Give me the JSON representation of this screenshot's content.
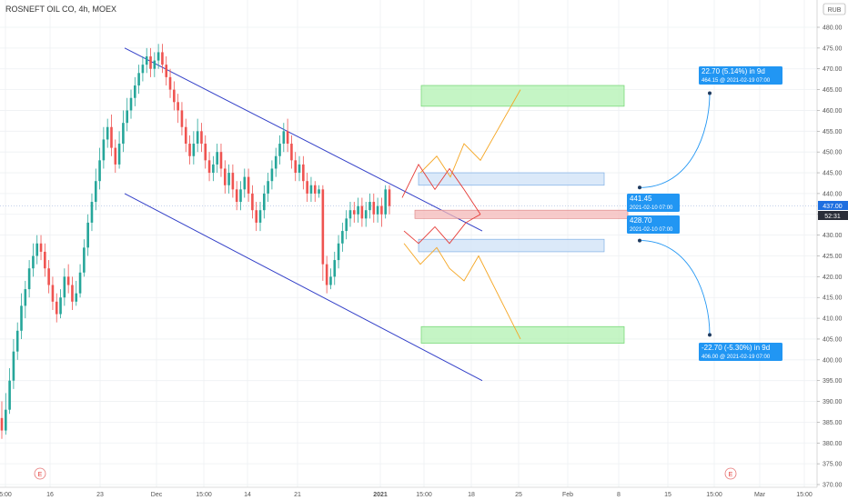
{
  "header": {
    "symbol": "ROSNEFT OIL CO, 4h, MOEX"
  },
  "price_axis": {
    "currency": "RUB",
    "last_price": "437.00",
    "countdown": "52:31"
  },
  "chart_data": {
    "type": "candlestick",
    "title": "ROSNEFT OIL CO, 4h, MOEX",
    "ylim": [
      370,
      480
    ],
    "y_ticks": [
      "370.00",
      "375.00",
      "380.00",
      "385.00",
      "390.00",
      "395.00",
      "400.00",
      "405.00",
      "410.00",
      "415.00",
      "420.00",
      "425.00",
      "430.00",
      "435.00",
      "440.00",
      "445.00",
      "450.00",
      "455.00",
      "460.00",
      "465.00",
      "470.00",
      "475.00",
      "480.00"
    ],
    "x_ticks": [
      "5:00",
      "16",
      "23",
      "Dec",
      "15:00",
      "14",
      "21",
      "2021",
      "15:00",
      "18",
      "25",
      "Feb",
      "8",
      "15",
      "15:00",
      "Mar",
      "15:00"
    ],
    "grid": true,
    "last_price": 437.0,
    "trend_channel": {
      "upper": [
        {
          "date": "2020-11-24",
          "price": 475
        },
        {
          "date": "2021-01-12",
          "price": 431
        }
      ],
      "lower": [
        {
          "date": "2020-11-22",
          "price": 440
        },
        {
          "date": "2021-01-12",
          "price": 395
        }
      ]
    },
    "zones": [
      {
        "name": "upper-target",
        "color": "#b2f2b2",
        "from": 461,
        "to": 466
      },
      {
        "name": "upper-resistance",
        "color": "#cfe2f7",
        "from": 442,
        "to": 445
      },
      {
        "name": "pivot",
        "color": "#f4b8b8",
        "from": 434,
        "to": 436
      },
      {
        "name": "lower-support",
        "color": "#cfe2f7",
        "from": 426,
        "to": 429
      },
      {
        "name": "lower-target",
        "color": "#b2f2b2",
        "from": 404,
        "to": 408
      }
    ],
    "projections": [
      {
        "label": "22.70 (5.14%) in 9d",
        "detail": "464.15 @ 2021-02-19  07:00",
        "from_label": "441.45",
        "from_detail": "2021-02-10 07:00"
      },
      {
        "label": "-22.70 (-5.30%) in 9d",
        "detail": "406.00 @ 2021-02-19  07:00",
        "from_label": "428.70",
        "from_detail": "2021-02-10 07:00"
      }
    ],
    "event_markers": [
      "E",
      "E"
    ],
    "candles": [
      [
        386,
        383,
        390,
        381
      ],
      [
        383,
        388,
        392,
        382
      ],
      [
        388,
        395,
        398,
        387
      ],
      [
        395,
        402,
        405,
        393
      ],
      [
        402,
        407,
        409,
        400
      ],
      [
        407,
        413,
        416,
        405
      ],
      [
        413,
        417,
        419,
        410
      ],
      [
        417,
        422,
        424,
        415
      ],
      [
        422,
        425,
        428,
        420
      ],
      [
        425,
        428,
        430,
        423
      ],
      [
        428,
        426,
        430,
        424
      ],
      [
        426,
        422,
        428,
        420
      ],
      [
        422,
        418,
        424,
        416
      ],
      [
        418,
        414,
        420,
        412
      ],
      [
        414,
        411,
        416,
        409
      ],
      [
        411,
        415,
        417,
        410
      ],
      [
        415,
        420,
        422,
        413
      ],
      [
        420,
        418,
        423,
        416
      ],
      [
        418,
        414,
        420,
        412
      ],
      [
        414,
        416,
        419,
        413
      ],
      [
        416,
        421,
        423,
        415
      ],
      [
        421,
        427,
        429,
        420
      ],
      [
        427,
        433,
        435,
        425
      ],
      [
        433,
        438,
        440,
        431
      ],
      [
        438,
        443,
        446,
        436
      ],
      [
        443,
        448,
        451,
        441
      ],
      [
        448,
        453,
        456,
        446
      ],
      [
        453,
        456,
        458,
        451
      ],
      [
        456,
        451,
        459,
        449
      ],
      [
        451,
        447,
        453,
        445
      ],
      [
        447,
        452,
        455,
        446
      ],
      [
        452,
        457,
        460,
        450
      ],
      [
        457,
        460,
        463,
        455
      ],
      [
        460,
        463,
        465,
        458
      ],
      [
        463,
        466,
        468,
        461
      ],
      [
        466,
        469,
        471,
        464
      ],
      [
        469,
        471,
        473,
        467
      ],
      [
        471,
        473,
        475,
        469
      ],
      [
        473,
        470,
        475,
        468
      ],
      [
        470,
        472,
        474,
        468
      ],
      [
        472,
        474,
        476,
        470
      ],
      [
        474,
        471,
        476,
        469
      ],
      [
        471,
        468,
        473,
        466
      ],
      [
        468,
        465,
        470,
        463
      ],
      [
        465,
        462,
        467,
        460
      ],
      [
        462,
        460,
        464,
        457
      ],
      [
        460,
        456,
        462,
        454
      ],
      [
        456,
        452,
        458,
        450
      ],
      [
        452,
        449,
        454,
        447
      ],
      [
        449,
        452,
        455,
        447
      ],
      [
        452,
        455,
        458,
        450
      ],
      [
        455,
        452,
        457,
        450
      ],
      [
        452,
        448,
        454,
        446
      ],
      [
        448,
        445,
        450,
        443
      ],
      [
        445,
        447,
        449,
        443
      ],
      [
        447,
        450,
        452,
        445
      ],
      [
        450,
        446,
        452,
        444
      ],
      [
        446,
        442,
        448,
        440
      ],
      [
        442,
        445,
        447,
        440
      ],
      [
        445,
        441,
        447,
        439
      ],
      [
        441,
        438,
        443,
        436
      ],
      [
        438,
        441,
        443,
        436
      ],
      [
        441,
        444,
        446,
        439
      ],
      [
        444,
        440,
        446,
        438
      ],
      [
        440,
        436,
        442,
        434
      ],
      [
        436,
        433,
        438,
        431
      ],
      [
        433,
        436,
        438,
        431
      ],
      [
        436,
        440,
        442,
        434
      ],
      [
        440,
        443,
        445,
        438
      ],
      [
        443,
        446,
        448,
        441
      ],
      [
        446,
        449,
        451,
        444
      ],
      [
        449,
        452,
        454,
        447
      ],
      [
        452,
        455,
        457,
        450
      ],
      [
        455,
        452,
        458,
        450
      ],
      [
        452,
        448,
        454,
        446
      ],
      [
        448,
        445,
        450,
        443
      ],
      [
        445,
        447,
        449,
        443
      ],
      [
        447,
        443,
        449,
        441
      ],
      [
        443,
        440,
        445,
        438
      ],
      [
        440,
        442,
        444,
        438
      ],
      [
        442,
        440,
        443,
        438
      ],
      [
        440,
        441,
        442,
        439
      ],
      [
        441,
        423,
        442,
        419
      ],
      [
        423,
        418,
        425,
        416
      ],
      [
        418,
        420,
        422,
        417
      ],
      [
        420,
        424,
        426,
        418
      ],
      [
        424,
        428,
        430,
        422
      ],
      [
        428,
        431,
        433,
        426
      ],
      [
        431,
        434,
        436,
        429
      ],
      [
        434,
        436,
        438,
        432
      ],
      [
        436,
        435,
        438,
        433
      ],
      [
        435,
        437,
        439,
        433
      ],
      [
        437,
        434,
        439,
        432
      ],
      [
        434,
        436,
        438,
        432
      ],
      [
        436,
        438,
        440,
        434
      ],
      [
        438,
        435,
        440,
        433
      ],
      [
        435,
        437,
        439,
        433
      ],
      [
        437,
        435,
        439,
        432
      ],
      [
        435,
        441,
        442,
        434
      ],
      [
        441,
        437,
        442,
        435
      ]
    ]
  }
}
